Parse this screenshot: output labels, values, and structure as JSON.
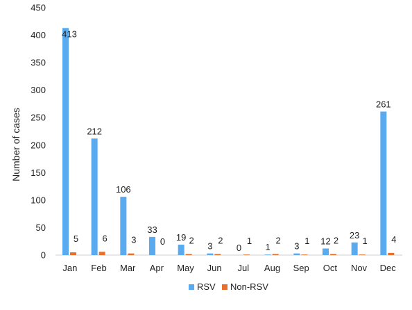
{
  "chart_data": {
    "type": "bar",
    "title": "",
    "xlabel": "",
    "ylabel": "Number of cases",
    "ylim": [
      0,
      450
    ],
    "yticks": [
      0,
      50,
      100,
      150,
      200,
      250,
      300,
      350,
      400,
      450
    ],
    "grid": false,
    "legend_position": "bottom",
    "categories": [
      "Jan",
      "Feb",
      "Mar",
      "Apr",
      "May",
      "Jun",
      "Jul",
      "Aug",
      "Sep",
      "Oct",
      "Nov",
      "Dec"
    ],
    "series": [
      {
        "name": "RSV",
        "color": "#5aaaf0",
        "values": [
          413,
          212,
          106,
          33,
          19,
          3,
          0,
          1,
          3,
          12,
          23,
          261
        ]
      },
      {
        "name": "Non-RSV",
        "color": "#e8702a",
        "values": [
          5,
          6,
          3,
          0,
          2,
          2,
          1,
          2,
          1,
          2,
          1,
          4
        ]
      }
    ]
  }
}
